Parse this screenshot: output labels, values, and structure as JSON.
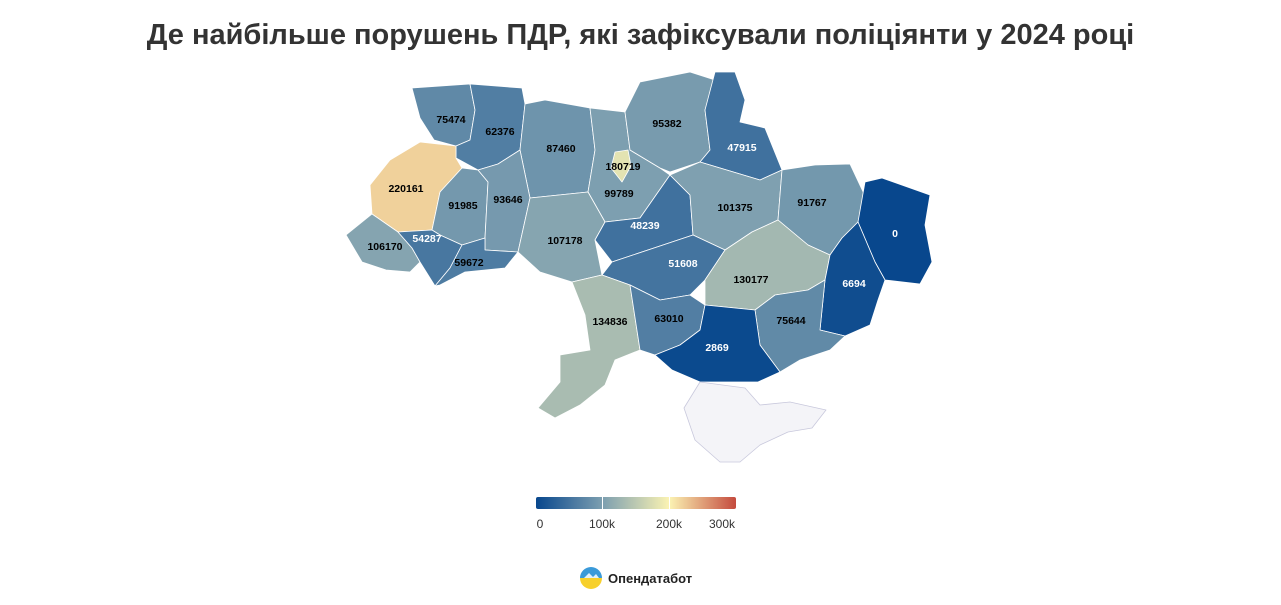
{
  "title": "Де найбільше порушень ПДР, які зафіксували поліціянти у 2024 році",
  "legend": {
    "min": 0,
    "max": 300000,
    "stops": [
      "#08478d",
      "#7d9fb0",
      "#fbf3b3",
      "#c44a3d"
    ],
    "labels": [
      "0",
      "100k",
      "200k",
      "300k"
    ],
    "label_values": [
      0,
      100000,
      200000,
      300000
    ]
  },
  "regions": [
    {
      "id": "volyn",
      "value": 75474
    },
    {
      "id": "rivne",
      "value": 62376
    },
    {
      "id": "zhytomyr",
      "value": 87460
    },
    {
      "id": "kyiv-oblast",
      "value": 99789
    },
    {
      "id": "kyiv-city",
      "value": 180719
    },
    {
      "id": "chernihiv",
      "value": 95382
    },
    {
      "id": "sumy",
      "value": 47915
    },
    {
      "id": "lviv",
      "value": 220161
    },
    {
      "id": "ternopil",
      "value": 91985
    },
    {
      "id": "khmelnytskyi",
      "value": 93646
    },
    {
      "id": "vinnytsia",
      "value": 107178
    },
    {
      "id": "cherkasy",
      "value": 48239
    },
    {
      "id": "poltava",
      "value": 101375
    },
    {
      "id": "kharkiv",
      "value": 91767
    },
    {
      "id": "luhansk",
      "value": 0
    },
    {
      "id": "zakarpattia",
      "value": 106170
    },
    {
      "id": "ivano-frankivsk",
      "value": 54287
    },
    {
      "id": "chernivtsi",
      "value": 59672
    },
    {
      "id": "kirovohrad",
      "value": 51608
    },
    {
      "id": "dnipropetrovsk",
      "value": 130177
    },
    {
      "id": "donetsk",
      "value": 6694
    },
    {
      "id": "odesa",
      "value": 134836
    },
    {
      "id": "mykolaiv",
      "value": 63010
    },
    {
      "id": "zaporizhzhia",
      "value": 75644
    },
    {
      "id": "kherson",
      "value": 2869
    },
    {
      "id": "crimea",
      "value": null
    }
  ],
  "no_data_color": "#f4f4f8",
  "brand": {
    "name": "Опендатабот"
  }
}
